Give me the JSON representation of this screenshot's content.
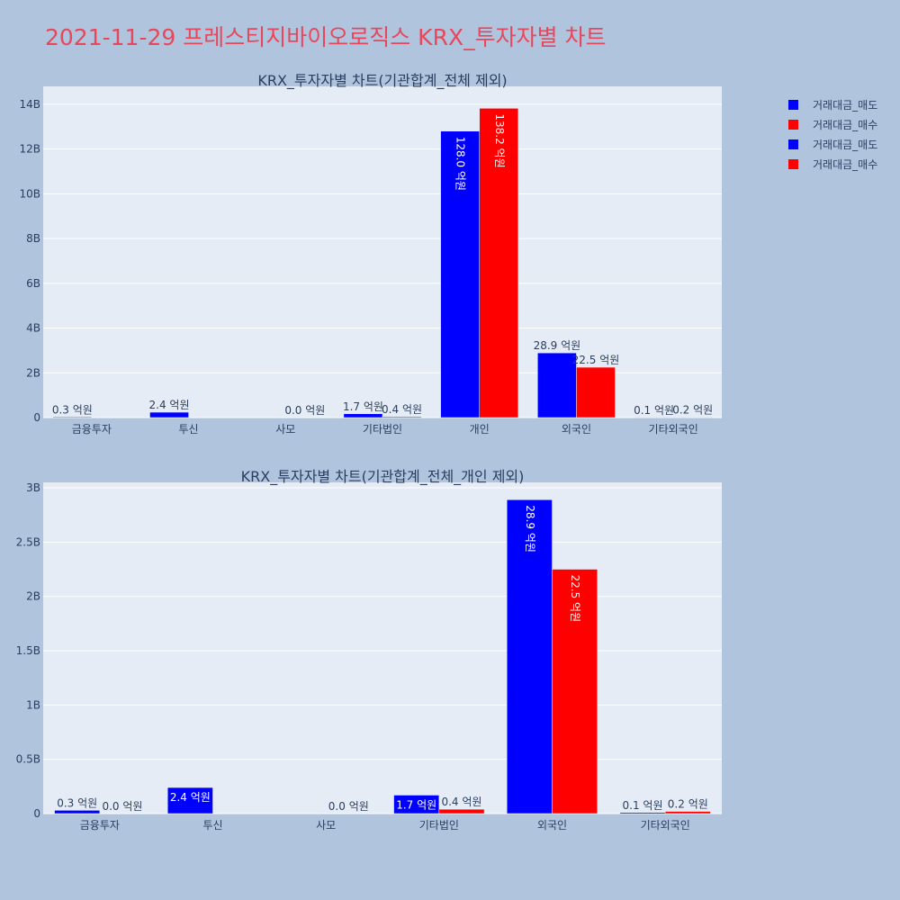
{
  "title": "2021-11-29 프레스티지바이오로직스 KRX_투자자별 차트",
  "legend": [
    {
      "label": "거래대금_매도",
      "color": "#0000ff"
    },
    {
      "label": "거래대금_매수",
      "color": "#ff0000"
    },
    {
      "label": "거래대금_매도",
      "color": "#0000ff"
    },
    {
      "label": "거래대금_매수",
      "color": "#ff0000"
    }
  ],
  "chart_data": [
    {
      "type": "bar",
      "title": "KRX_투자자별 차트(기관합계_전체 제외)",
      "categories": [
        "금융투자",
        "투신",
        "사모",
        "기타법인",
        "개인",
        "외국인",
        "기타외국인"
      ],
      "series": [
        {
          "name": "거래대금_매도",
          "color": "#0000ff",
          "values": [
            30000000,
            240000000,
            0,
            170000000,
            12800000000,
            2890000000,
            10000000
          ],
          "labels": [
            "0.3 억원",
            "2.4 억원",
            "",
            "1.7 억원",
            "128.0 억원",
            "28.9 억원",
            "0.1 억원"
          ]
        },
        {
          "name": "거래대금_매수",
          "color": "#ff0000",
          "values": [
            0,
            0,
            0,
            40000000,
            13820000000,
            2250000000,
            20000000
          ],
          "labels": [
            "",
            "",
            "0.0 억원",
            "0.4 억원",
            "138.2 억원",
            "22.5 억원",
            "0.2 억원"
          ]
        }
      ],
      "ylim": [
        0,
        14800000000
      ],
      "yticks": [
        0,
        2000000000,
        4000000000,
        6000000000,
        8000000000,
        10000000000,
        12000000000,
        14000000000
      ],
      "ytick_labels": [
        "0",
        "2B",
        "4B",
        "6B",
        "8B",
        "10B",
        "12B",
        "14B"
      ],
      "grid": true
    },
    {
      "type": "bar",
      "title": "KRX_투자자별 차트(기관합계_전체_개인 제외)",
      "categories": [
        "금융투자",
        "투신",
        "사모",
        "기타법인",
        "외국인",
        "기타외국인"
      ],
      "series": [
        {
          "name": "거래대금_매도",
          "color": "#0000ff",
          "values": [
            30000000,
            240000000,
            0,
            170000000,
            2890000000,
            10000000
          ],
          "labels": [
            "0.3 억원",
            "2.4 억원",
            "",
            "1.7 억원",
            "28.9 억원",
            "0.1 억원"
          ]
        },
        {
          "name": "거래대금_매수",
          "color": "#ff0000",
          "values": [
            0,
            0,
            0,
            40000000,
            2250000000,
            20000000
          ],
          "labels": [
            "0.0 억원",
            "",
            "0.0 억원",
            "0.4 억원",
            "22.5 억원",
            "0.2 억원"
          ]
        }
      ],
      "ylim": [
        0,
        3050000000
      ],
      "yticks": [
        0,
        500000000,
        1000000000,
        1500000000,
        2000000000,
        2500000000,
        3000000000
      ],
      "ytick_labels": [
        "0",
        "0.5B",
        "1B",
        "1.5B",
        "2B",
        "2.5B",
        "3B"
      ],
      "grid": true
    }
  ]
}
